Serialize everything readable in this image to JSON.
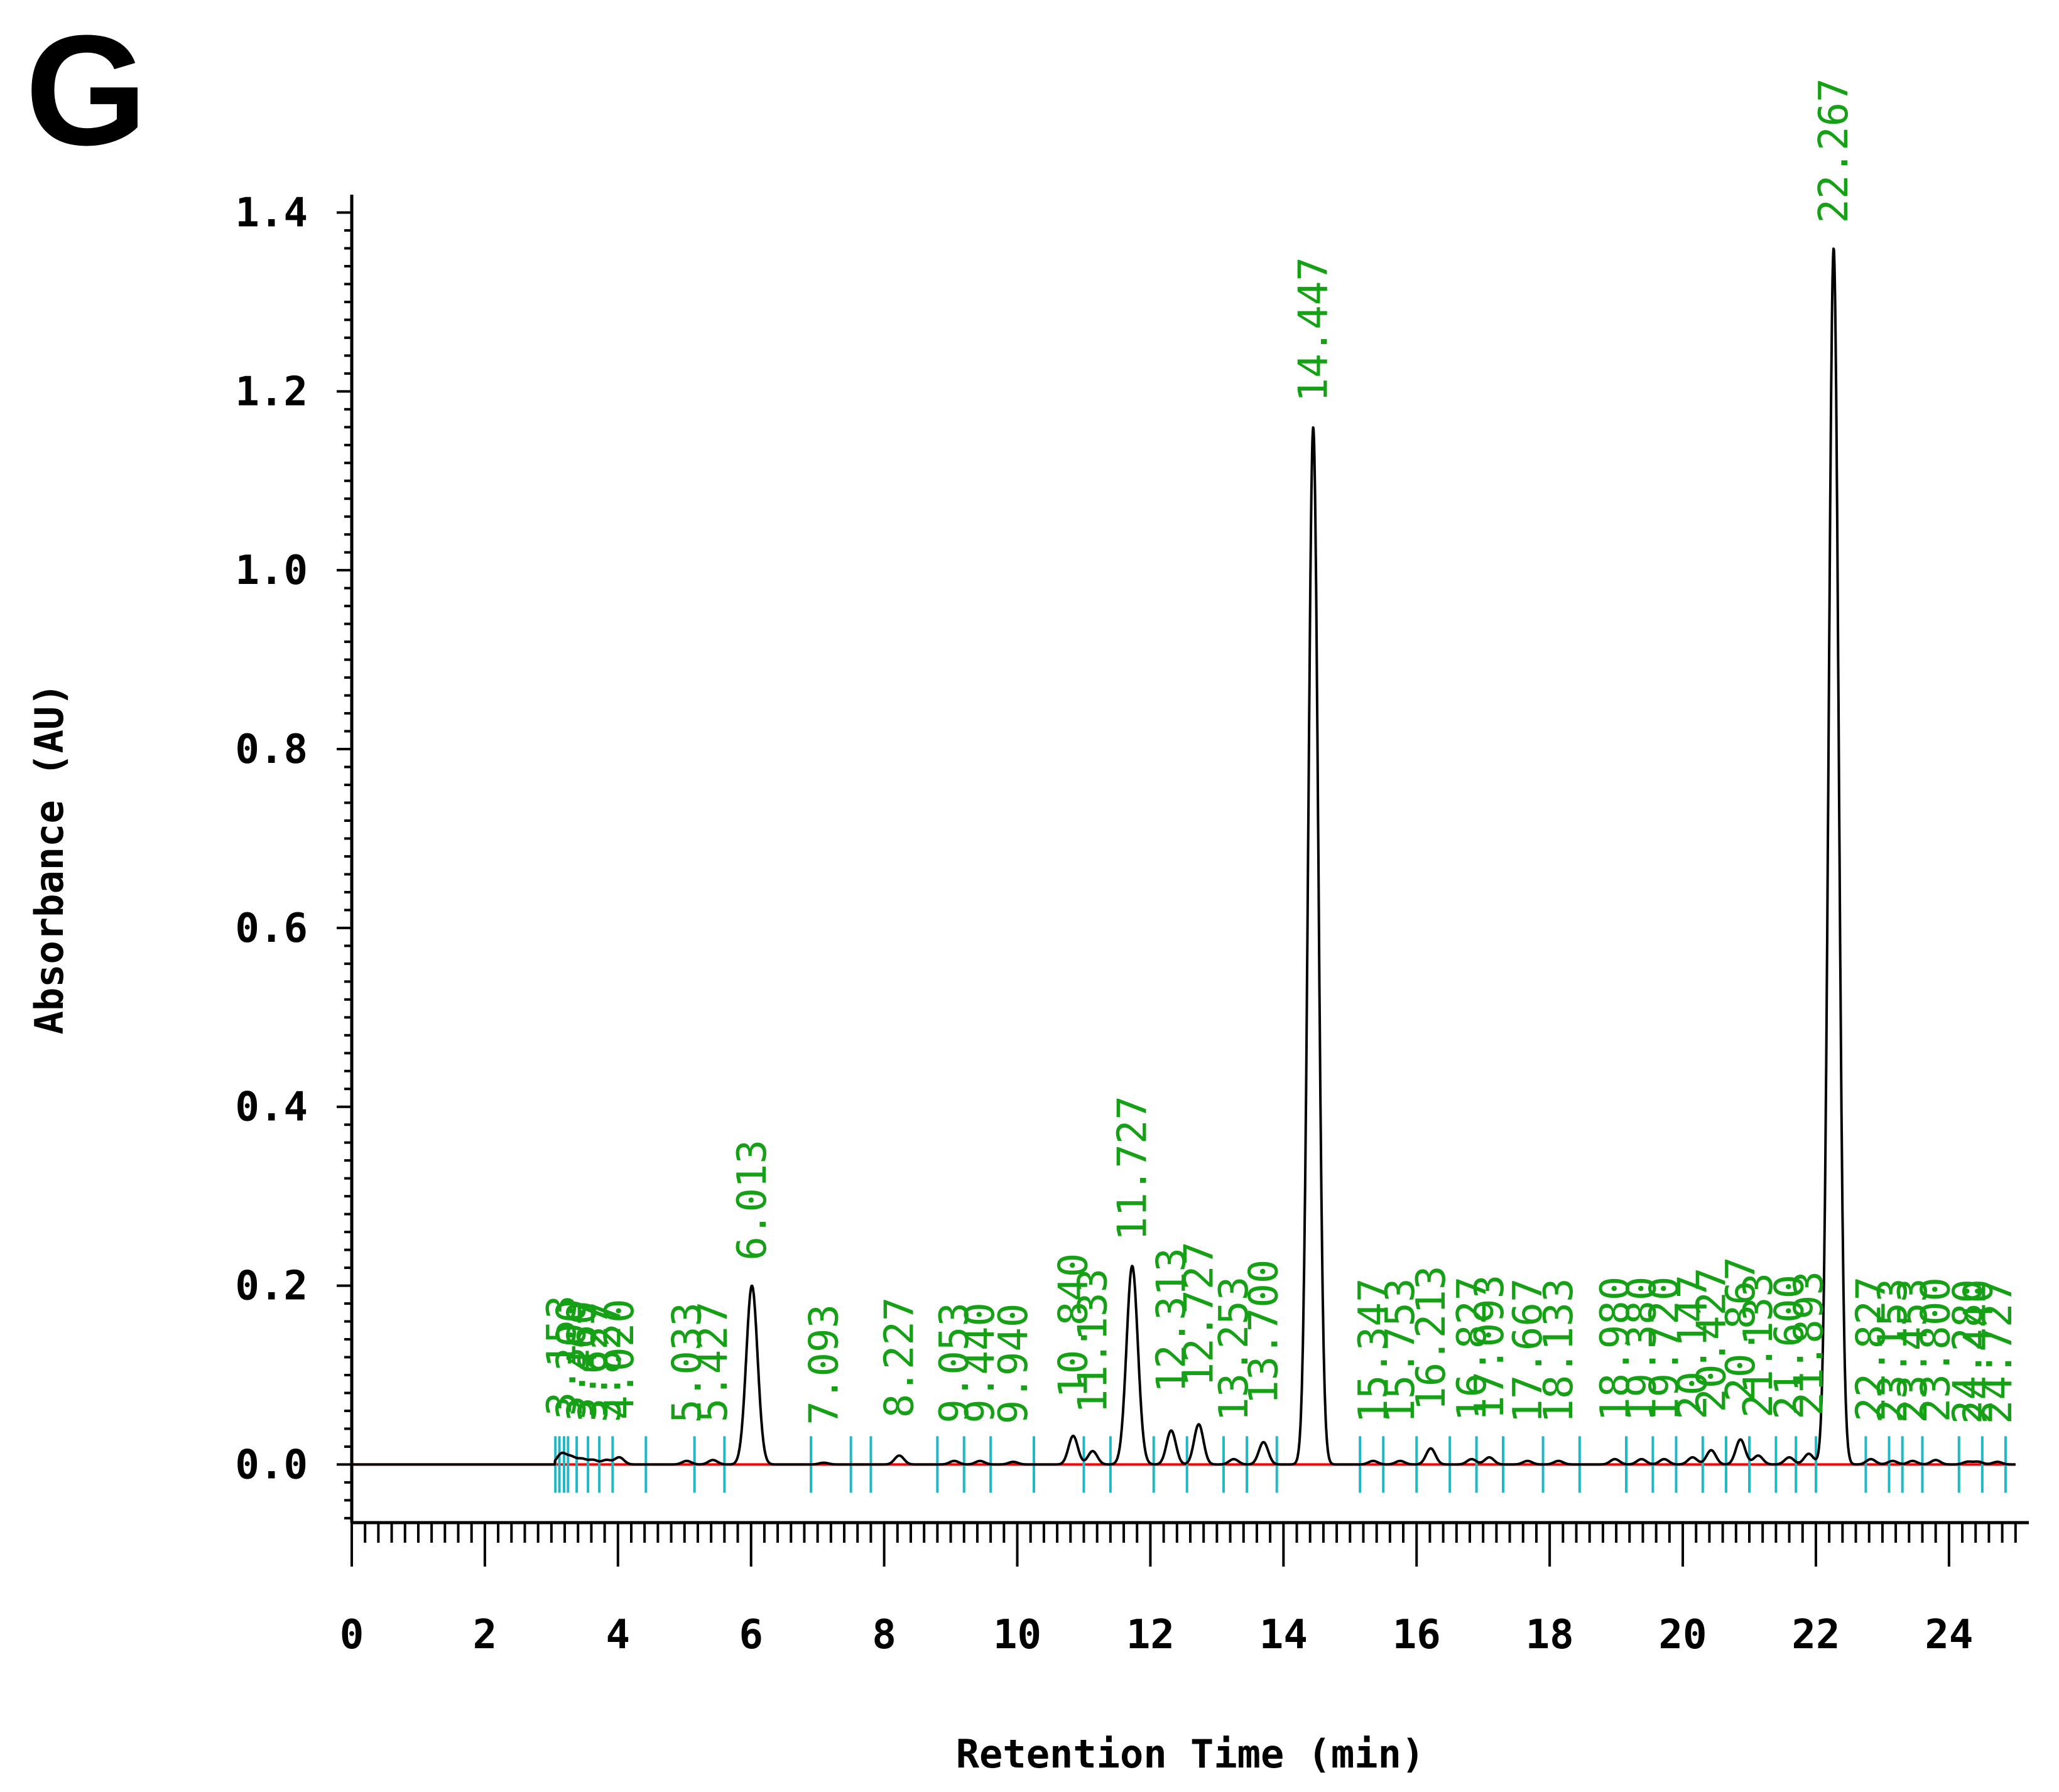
{
  "panel_label": "G",
  "colors": {
    "trace": "#000000",
    "baseline": "#ff0000",
    "peak_label": "#16a016",
    "integration_marker": "#1fb8c4"
  },
  "chart_data": {
    "type": "line",
    "title": "",
    "xlabel": "Retention Time (min)",
    "ylabel": "Absorbance (AU)",
    "xlim": [
      0,
      25.2
    ],
    "ylim": [
      -0.065,
      1.42
    ],
    "x_ticks": [
      "0",
      "2",
      "4",
      "6",
      "8",
      "10",
      "12",
      "14",
      "16",
      "18",
      "20",
      "22",
      "24"
    ],
    "y_ticks": [
      "0.0",
      "0.2",
      "0.4",
      "0.6",
      "0.8",
      "1.0",
      "1.2",
      "1.4"
    ],
    "grid": false,
    "legend": "none",
    "baseline": {
      "x": [
        0,
        25
      ],
      "y": [
        0.0,
        0.0
      ]
    },
    "peaks": [
      {
        "label": "3.153",
        "rt": 3.153,
        "height": 0.012
      },
      {
        "label": "3.300",
        "rt": 3.3,
        "height": 0.008
      },
      {
        "label": "3.460",
        "rt": 3.46,
        "height": 0.006
      },
      {
        "label": "3.627",
        "rt": 3.627,
        "height": 0.005
      },
      {
        "label": "3.827",
        "rt": 3.827,
        "height": 0.005
      },
      {
        "label": "4.020",
        "rt": 4.02,
        "height": 0.008
      },
      {
        "label": "5.033",
        "rt": 5.033,
        "height": 0.004
      },
      {
        "label": "5.427",
        "rt": 5.427,
        "height": 0.005
      },
      {
        "label": "6.013",
        "rt": 6.013,
        "height": 0.2
      },
      {
        "label": "7.093",
        "rt": 7.093,
        "height": 0.002
      },
      {
        "label": "8.227",
        "rt": 8.227,
        "height": 0.01
      },
      {
        "label": "9.053",
        "rt": 9.053,
        "height": 0.004
      },
      {
        "label": "9.440",
        "rt": 9.44,
        "height": 0.004
      },
      {
        "label": "9.940",
        "rt": 9.94,
        "height": 0.003
      },
      {
        "label": "10.840",
        "rt": 10.84,
        "height": 0.032
      },
      {
        "label": "11.133",
        "rt": 11.133,
        "height": 0.015
      },
      {
        "label": "11.727",
        "rt": 11.727,
        "height": 0.222
      },
      {
        "label": "12.313",
        "rt": 12.313,
        "height": 0.038
      },
      {
        "label": "12.727",
        "rt": 12.727,
        "height": 0.045
      },
      {
        "label": "13.253",
        "rt": 13.253,
        "height": 0.006
      },
      {
        "label": "13.700",
        "rt": 13.7,
        "height": 0.025
      },
      {
        "label": "14.447",
        "rt": 14.447,
        "height": 1.16
      },
      {
        "label": "15.347",
        "rt": 15.347,
        "height": 0.004
      },
      {
        "label": "15.753",
        "rt": 15.753,
        "height": 0.004
      },
      {
        "label": "16.213",
        "rt": 16.213,
        "height": 0.018
      },
      {
        "label": "16.827",
        "rt": 16.827,
        "height": 0.006
      },
      {
        "label": "17.093",
        "rt": 17.093,
        "height": 0.008
      },
      {
        "label": "17.667",
        "rt": 17.667,
        "height": 0.004
      },
      {
        "label": "18.133",
        "rt": 18.133,
        "height": 0.004
      },
      {
        "label": "18.980",
        "rt": 18.98,
        "height": 0.006
      },
      {
        "label": "19.380",
        "rt": 19.38,
        "height": 0.006
      },
      {
        "label": "19.720",
        "rt": 19.72,
        "height": 0.006
      },
      {
        "label": "20.147",
        "rt": 20.147,
        "height": 0.008
      },
      {
        "label": "20.427",
        "rt": 20.427,
        "height": 0.016
      },
      {
        "label": "20.867",
        "rt": 20.867,
        "height": 0.028
      },
      {
        "label": "21.133",
        "rt": 21.133,
        "height": 0.01
      },
      {
        "label": "21.600",
        "rt": 21.6,
        "height": 0.008
      },
      {
        "label": "21.893",
        "rt": 21.893,
        "height": 0.012
      },
      {
        "label": "22.267",
        "rt": 22.267,
        "height": 1.36
      },
      {
        "label": "22.827",
        "rt": 22.827,
        "height": 0.006
      },
      {
        "label": "23.153",
        "rt": 23.153,
        "height": 0.004
      },
      {
        "label": "23.453",
        "rt": 23.453,
        "height": 0.004
      },
      {
        "label": "23.800",
        "rt": 23.8,
        "height": 0.005
      },
      {
        "label": "24.280",
        "rt": 24.28,
        "height": 0.003
      },
      {
        "label": "24.440",
        "rt": 24.44,
        "height": 0.003
      },
      {
        "label": "24.727",
        "rt": 24.727,
        "height": 0.003
      }
    ],
    "integration_markers": [
      3.06,
      3.12,
      3.19,
      3.25,
      3.38,
      3.55,
      3.72,
      3.92,
      4.42,
      5.15,
      5.6,
      6.9,
      7.5,
      7.8,
      8.8,
      9.2,
      9.6,
      10.25,
      11.0,
      11.4,
      12.05,
      12.55,
      13.1,
      13.45,
      13.9,
      15.15,
      15.5,
      16.0,
      16.5,
      16.9,
      17.3,
      17.9,
      18.45,
      19.15,
      19.55,
      19.9,
      20.3,
      20.65,
      21.0,
      21.4,
      21.7,
      22.0,
      22.75,
      23.1,
      23.3,
      23.6,
      24.15,
      24.5,
      24.85
    ]
  }
}
